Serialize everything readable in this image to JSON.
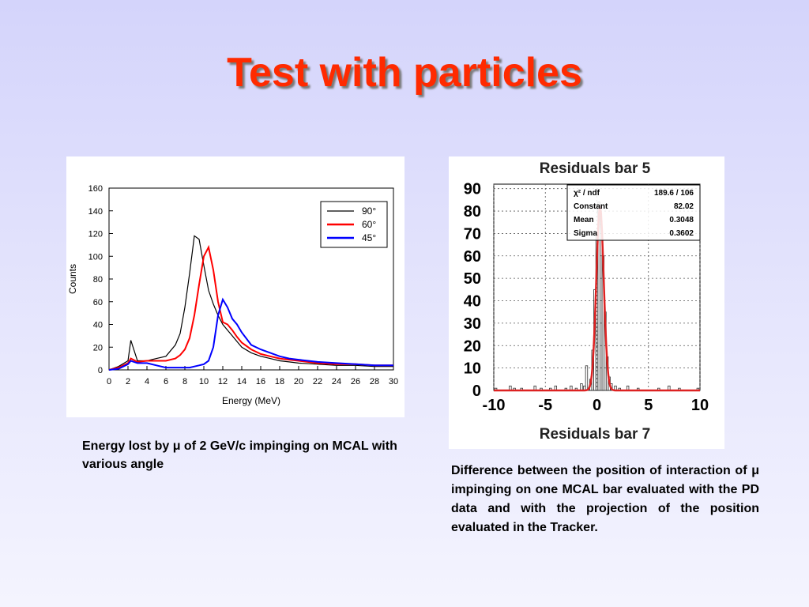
{
  "slide": {
    "title": "Test with particles",
    "caption_left": "Energy lost by μ of 2 GeV/c impinging on MCAL with various angle",
    "caption_right": [
      "Difference between the position of interaction of μ impinging on one MCAL bar  evaluated with the PD data and with the projection of the position evaluated in the Tracker",
      "."
    ]
  },
  "colors": {
    "title": "#ff2a00",
    "background": "#dcdcfb",
    "series_90": "#000000",
    "series_60": "#ff0000",
    "series_45": "#0000ff",
    "fit_curve": "#dd2222"
  },
  "chart_data": [
    {
      "type": "line",
      "title": "",
      "xlabel": "Energy (MeV)",
      "ylabel": "Counts",
      "xlim": [
        0,
        30
      ],
      "ylim": [
        0,
        160
      ],
      "xticks": [
        0,
        2,
        4,
        6,
        8,
        10,
        12,
        14,
        16,
        18,
        20,
        22,
        24,
        26,
        28,
        30
      ],
      "yticks": [
        0,
        20,
        40,
        60,
        80,
        100,
        120,
        140,
        160
      ],
      "grid": false,
      "legend_position": "top-right",
      "x": [
        0,
        1,
        2,
        2.3,
        3,
        4,
        5,
        6,
        7,
        7.5,
        8,
        8.5,
        9,
        9.5,
        10,
        10.5,
        11,
        11.5,
        12,
        12.5,
        13,
        13.5,
        14,
        15,
        16,
        17,
        18,
        19,
        20,
        22,
        24,
        26,
        28,
        30
      ],
      "series": [
        {
          "name": "90°",
          "color": "#000000",
          "values": [
            0,
            3,
            8,
            26,
            8,
            8,
            10,
            12,
            22,
            32,
            55,
            85,
            118,
            115,
            92,
            70,
            58,
            48,
            40,
            35,
            30,
            25,
            20,
            15,
            12,
            10,
            8,
            7,
            6,
            5,
            4,
            4,
            3,
            3
          ]
        },
        {
          "name": "60°",
          "color": "#ff0000",
          "values": [
            0,
            2,
            6,
            10,
            7,
            8,
            8,
            8,
            10,
            13,
            18,
            28,
            48,
            75,
            100,
            108,
            88,
            60,
            42,
            40,
            35,
            29,
            24,
            18,
            14,
            12,
            10,
            9,
            8,
            6,
            5,
            5,
            4,
            4
          ]
        },
        {
          "name": "45°",
          "color": "#0000ff",
          "values": [
            0,
            1,
            5,
            8,
            6,
            6,
            4,
            2,
            2,
            2,
            2,
            2,
            3,
            4,
            5,
            8,
            20,
            48,
            62,
            55,
            45,
            40,
            33,
            22,
            18,
            15,
            12,
            10,
            9,
            7,
            6,
            5,
            4,
            4
          ]
        }
      ]
    },
    {
      "type": "bar",
      "title": "Residuals bar 5",
      "xlabel": "Residuals bar 7",
      "ylabel": "",
      "xlim": [
        -10,
        10
      ],
      "ylim": [
        0,
        92
      ],
      "xticks": [
        -10,
        -5,
        0,
        5,
        10
      ],
      "yticks": [
        0,
        10,
        20,
        30,
        40,
        50,
        60,
        70,
        80,
        90
      ],
      "grid": true,
      "stats_box": [
        {
          "label": "χ² / ndf",
          "value": "189.6   /   106"
        },
        {
          "label": "Constant",
          "value": "82.02"
        },
        {
          "label": "Mean",
          "value": "0.3048"
        },
        {
          "label": "Sigma",
          "value": "0.3602"
        }
      ],
      "fit": {
        "type": "gaussian",
        "constant": 82.02,
        "mean": 0.3048,
        "sigma": 0.3602
      },
      "x": [
        -9.8,
        -9,
        -8.4,
        -8,
        -7.3,
        -6.5,
        -6,
        -5.4,
        -4.5,
        -4,
        -3.5,
        -3,
        -2.5,
        -2,
        -1.5,
        -1.2,
        -1,
        -0.8,
        -0.6,
        -0.4,
        -0.2,
        0,
        0.2,
        0.4,
        0.6,
        0.8,
        1,
        1.2,
        1.4,
        1.8,
        2.2,
        3,
        4,
        5,
        6,
        7,
        8,
        9,
        9.8
      ],
      "values": [
        1,
        0,
        2,
        1,
        1,
        0,
        2,
        1,
        1,
        2,
        0,
        1,
        2,
        1,
        3,
        2,
        11,
        1,
        5,
        18,
        45,
        70,
        84,
        74,
        60,
        35,
        15,
        6,
        3,
        2,
        1,
        2,
        1,
        0,
        1,
        2,
        1,
        0,
        1
      ]
    }
  ]
}
